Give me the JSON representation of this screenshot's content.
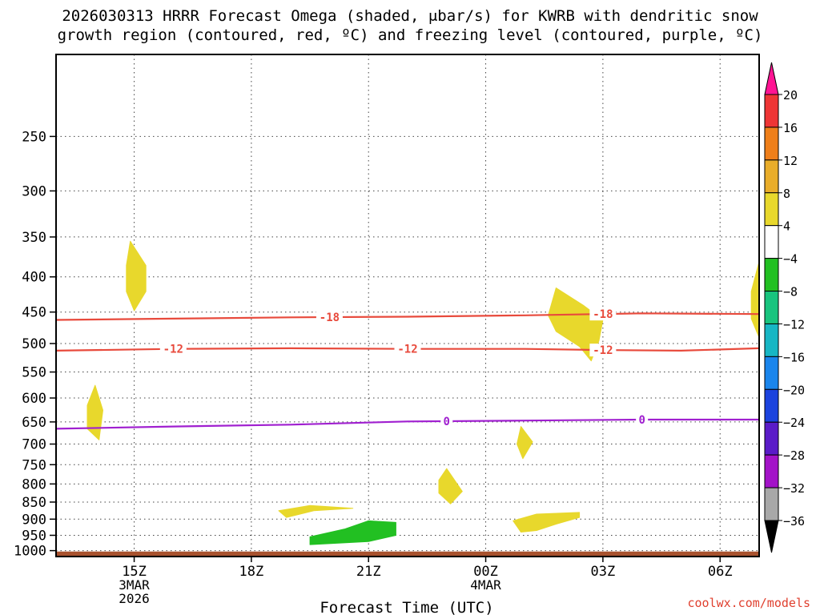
{
  "chart_data": {
    "type": "heatmap",
    "title_line1": "2026030313 HRRR Forecast Omega (shaded, μbar/s) for KWRB with dendritic snow",
    "title_line2": "growth region (contoured, red, ºC) and freezing level (contoured, purple, ºC)",
    "xlabel": "Forecast Time (UTC)",
    "ylabel": "",
    "x_ticks": [
      {
        "label": "15Z",
        "sub1": "3MAR",
        "sub2": "2026",
        "hour": 2
      },
      {
        "label": "18Z",
        "sub1": "",
        "sub2": "",
        "hour": 5
      },
      {
        "label": "21Z",
        "sub1": "",
        "sub2": "",
        "hour": 8
      },
      {
        "label": "00Z",
        "sub1": "4MAR",
        "sub2": "",
        "hour": 11
      },
      {
        "label": "03Z",
        "sub1": "",
        "sub2": "",
        "hour": 14
      },
      {
        "label": "06Z",
        "sub1": "",
        "sub2": "",
        "hour": 17
      }
    ],
    "xlim_hours": [
      0,
      18
    ],
    "y_ticks": [
      250,
      300,
      350,
      400,
      450,
      500,
      550,
      600,
      650,
      700,
      750,
      800,
      850,
      900,
      950,
      1000
    ],
    "ylim_hpa": [
      1020,
      190
    ],
    "colorbar": {
      "levels": [
        20,
        16,
        12,
        8,
        4,
        -4,
        -8,
        -12,
        -16,
        -20,
        -24,
        -28,
        -32,
        -36
      ],
      "colors": [
        "#ff1493",
        "#ee3535",
        "#ef7f1a",
        "#e9ad2a",
        "#e8d82c",
        "#ffffff",
        "#22c022",
        "#18c47e",
        "#17b6c4",
        "#1a85ec",
        "#1b43de",
        "#5a1bc8",
        "#a313c8",
        "#a8a8a8",
        "#000000"
      ]
    },
    "contours": [
      {
        "name": "dgz-minus18",
        "color": "#e84a3c",
        "label": "-18",
        "points": [
          [
            0,
            462
          ],
          [
            3,
            460
          ],
          [
            6,
            458
          ],
          [
            9,
            457
          ],
          [
            12,
            455
          ],
          [
            15,
            452
          ],
          [
            18,
            453
          ]
        ],
        "label_hours": [
          7,
          14
        ]
      },
      {
        "name": "dgz-minus12",
        "color": "#e84a3c",
        "label": "-12",
        "points": [
          [
            0,
            512
          ],
          [
            3,
            509
          ],
          [
            6,
            508
          ],
          [
            9,
            509
          ],
          [
            12,
            509
          ],
          [
            14,
            511
          ],
          [
            16,
            512
          ],
          [
            18,
            508
          ]
        ],
        "label_hours": [
          3,
          9,
          14
        ]
      },
      {
        "name": "freezing-level-0",
        "color": "#a020d0",
        "label": "0",
        "points": [
          [
            0,
            665
          ],
          [
            3,
            660
          ],
          [
            6,
            656
          ],
          [
            9,
            649
          ],
          [
            12,
            647
          ],
          [
            15,
            645
          ],
          [
            18,
            645
          ]
        ],
        "label_hours": [
          10,
          15
        ]
      }
    ],
    "shaded_regions": [
      {
        "name": "omega-pos-1",
        "class": "4 to 8",
        "color": "#e8d82c",
        "points": [
          [
            1.9,
            355
          ],
          [
            2.3,
            385
          ],
          [
            2.3,
            420
          ],
          [
            2.0,
            448
          ],
          [
            1.8,
            420
          ],
          [
            1.8,
            385
          ]
        ]
      },
      {
        "name": "omega-pos-2",
        "class": "4 to 8",
        "color": "#e8d82c",
        "points": [
          [
            1.0,
            575
          ],
          [
            1.2,
            625
          ],
          [
            1.1,
            690
          ],
          [
            0.8,
            665
          ],
          [
            0.8,
            615
          ]
        ]
      },
      {
        "name": "omega-pos-3",
        "class": "4 to 8",
        "color": "#e8d82c",
        "points": [
          [
            10.0,
            760
          ],
          [
            10.4,
            820
          ],
          [
            10.1,
            855
          ],
          [
            9.8,
            825
          ],
          [
            9.8,
            790
          ]
        ]
      },
      {
        "name": "omega-pos-4",
        "class": "4 to 8",
        "color": "#e8d82c",
        "points": [
          [
            11.9,
            660
          ],
          [
            12.2,
            695
          ],
          [
            11.95,
            735
          ],
          [
            11.8,
            700
          ]
        ]
      },
      {
        "name": "omega-pos-5",
        "class": "4 to 8",
        "color": "#e8d82c",
        "points": [
          [
            5.7,
            875
          ],
          [
            6.5,
            860
          ],
          [
            7.6,
            868
          ],
          [
            6.6,
            875
          ],
          [
            5.9,
            895
          ]
        ]
      },
      {
        "name": "omega-pos-6",
        "class": "4 to 8",
        "color": "#e8d82c",
        "points": [
          [
            11.7,
            905
          ],
          [
            12.3,
            885
          ],
          [
            13.4,
            880
          ],
          [
            13.4,
            895
          ],
          [
            12.8,
            915
          ],
          [
            12.3,
            935
          ],
          [
            11.9,
            940
          ]
        ]
      },
      {
        "name": "omega-pos-7",
        "class": "4 to 8",
        "color": "#e8d82c",
        "points": [
          [
            12.8,
            415
          ],
          [
            13.5,
            440
          ],
          [
            14.0,
            462
          ],
          [
            13.9,
            495
          ],
          [
            13.7,
            530
          ],
          [
            13.4,
            505
          ],
          [
            12.8,
            480
          ],
          [
            12.6,
            455
          ]
        ]
      },
      {
        "name": "omega-pos-8",
        "class": "4 to 8",
        "color": "#e8d82c",
        "points": [
          [
            18.0,
            380
          ],
          [
            18.0,
            490
          ],
          [
            17.8,
            460
          ],
          [
            17.8,
            420
          ]
        ]
      },
      {
        "name": "omega-neg-1",
        "class": "-4 to -8",
        "color": "#22c022",
        "points": [
          [
            6.5,
            955
          ],
          [
            7.4,
            930
          ],
          [
            8.0,
            905
          ],
          [
            8.7,
            910
          ],
          [
            8.7,
            950
          ],
          [
            8.0,
            970
          ],
          [
            6.5,
            980
          ]
        ]
      }
    ],
    "terrain": {
      "color": "#a8522e",
      "bottom_hpa": 1020,
      "top_hpa": 1003
    }
  },
  "credit": "coolwx.com/models"
}
